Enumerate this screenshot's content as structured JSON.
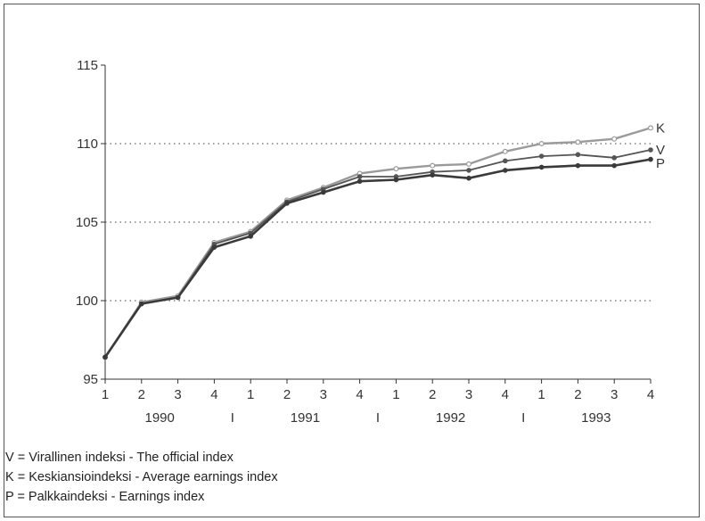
{
  "chart_data": {
    "type": "line",
    "x": [
      "1",
      "2",
      "3",
      "4",
      "1",
      "2",
      "3",
      "4",
      "1",
      "2",
      "3",
      "4",
      "1",
      "2",
      "3",
      "4"
    ],
    "years": [
      "1990",
      "1991",
      "1992",
      "1993"
    ],
    "year_separator": "I",
    "ylim": [
      95,
      115
    ],
    "yticks": [
      "95",
      "100",
      "105",
      "110",
      "115"
    ],
    "grid": "horizontal dotted",
    "series": [
      {
        "name": "K",
        "color": "#9a9a9a",
        "values": [
          96.4,
          99.9,
          100.3,
          103.7,
          104.4,
          106.4,
          107.2,
          108.1,
          108.4,
          108.6,
          108.7,
          109.5,
          110.0,
          110.1,
          110.3,
          111.0
        ]
      },
      {
        "name": "V",
        "color": "#555555",
        "values": [
          96.4,
          99.8,
          100.2,
          103.6,
          104.3,
          106.3,
          107.1,
          107.9,
          107.9,
          108.2,
          108.3,
          108.9,
          109.2,
          109.3,
          109.1,
          109.6
        ]
      },
      {
        "name": "P",
        "color": "#3a3a3a",
        "values": [
          96.4,
          99.8,
          100.2,
          103.4,
          104.1,
          106.2,
          106.9,
          107.6,
          107.7,
          108.0,
          107.8,
          108.3,
          108.5,
          108.6,
          108.6,
          109.0
        ]
      }
    ],
    "legend": [
      "V = Virallinen indeksi - The official index",
      "K = Keskiansioindeksi - Average earnings index",
      "P = Palkkaindeksi - Earnings index"
    ]
  }
}
